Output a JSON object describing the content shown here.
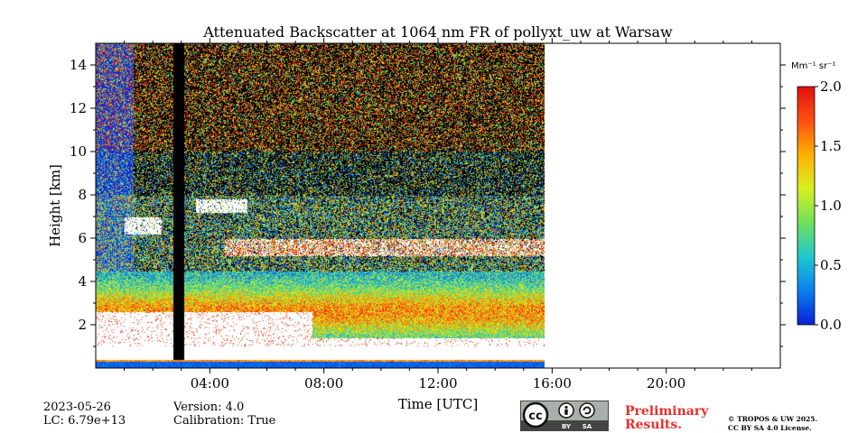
{
  "chart_data": {
    "type": "heatmap",
    "title": "Attenuated Backscatter at 1064 nm FR of pollyxt_uw at Warsaw",
    "xlabel": "Time [UTC]",
    "ylabel": "Height [km]",
    "xlim_hours": [
      0,
      24
    ],
    "ylim_km": [
      0,
      15
    ],
    "data_extent_hours": [
      0,
      15.75
    ],
    "x_ticks": [
      {
        "hour": 4,
        "label": "04:00"
      },
      {
        "hour": 8,
        "label": "08:00"
      },
      {
        "hour": 12,
        "label": "12:00"
      },
      {
        "hour": 16,
        "label": "16:00"
      },
      {
        "hour": 20,
        "label": "20:00"
      }
    ],
    "y_ticks": [
      {
        "value": 2,
        "label": "2"
      },
      {
        "value": 4,
        "label": "4"
      },
      {
        "value": 6,
        "label": "6"
      },
      {
        "value": 8,
        "label": "8"
      },
      {
        "value": 10,
        "label": "10"
      },
      {
        "value": 12,
        "label": "12"
      },
      {
        "value": 14,
        "label": "14"
      }
    ],
    "colorbar": {
      "unit_label": "Mm⁻¹ sr⁻¹",
      "range": [
        0.0,
        2.0
      ],
      "ticks": [
        {
          "value": 0.0,
          "label": "0.0"
        },
        {
          "value": 0.5,
          "label": "0.5"
        },
        {
          "value": 1.0,
          "label": "1.0"
        },
        {
          "value": 1.5,
          "label": "1.5"
        },
        {
          "value": 2.0,
          "label": "2.0"
        }
      ],
      "colormap": [
        "#0b1fd8",
        "#0a7ff0",
        "#1fc8d0",
        "#6fe05a",
        "#d8f020",
        "#ffb000",
        "#ff5010",
        "#e01010"
      ]
    },
    "features": [
      {
        "name": "near-surface layer",
        "height_range_km": [
          0.0,
          0.4
        ]
      },
      {
        "name": "saturated low layer",
        "height_range_km": [
          0.4,
          2.8
        ]
      },
      {
        "name": "aerosol layer",
        "height_range_km": [
          1.5,
          4.5
        ]
      },
      {
        "name": "elevated cloud band",
        "height_range_km": [
          5.2,
          6.0
        ]
      },
      {
        "name": "mid-level clouds",
        "time_range_hours": [
          1.0,
          5.3
        ],
        "height_range_km": [
          5.5,
          8.2
        ]
      },
      {
        "name": "no-signal gap",
        "time_range_hours": [
          2.7,
          3.1
        ]
      }
    ]
  },
  "footer": {
    "date": "2023-05-26",
    "lidar_constant": "LC: 6.79e+13",
    "version": "Version: 4.0",
    "calibration": "Calibration: True",
    "preliminary": "Preliminary\nResults.",
    "license": "© TROPOS & UW 2025.\nCC BY SA 4.0 License.",
    "cc_badge": {
      "cc": "cc",
      "by": "BY",
      "sa": "SA"
    }
  }
}
